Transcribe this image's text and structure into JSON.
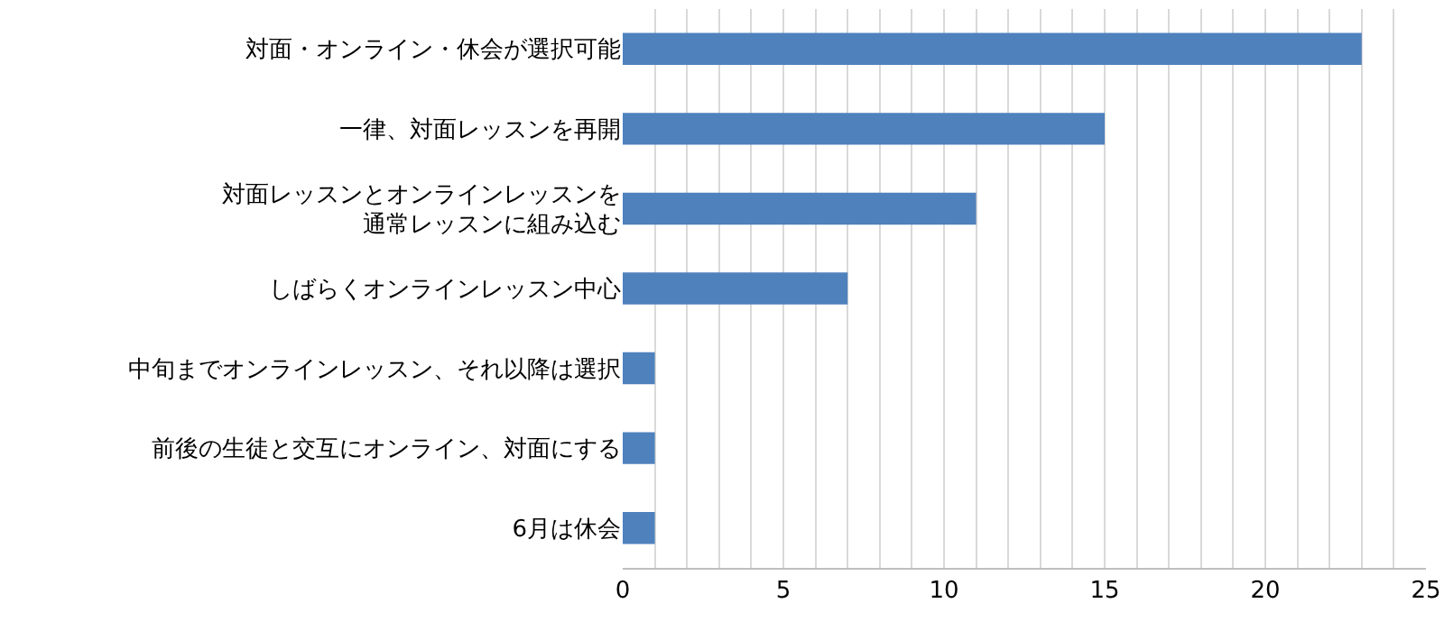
{
  "chart_data": {
    "type": "bar",
    "orientation": "horizontal",
    "categories": [
      "対面・オンライン・休会が選択可能",
      "一律、対面レッスンを再開",
      "対面レッスンとオンラインレッスンを通常レッスンに組み込む",
      "しばらくオンラインレッスン中心",
      "中旬までオンラインレッスン、それ以降は選択",
      "前後の生徒と交互にオンライン、対面にする",
      "6月は休会"
    ],
    "values": [
      23,
      15,
      11,
      7,
      1,
      1,
      1
    ],
    "color": "#4f81bd",
    "xlim": [
      0,
      25
    ],
    "xticks": [
      0,
      {
        "value": 1,
        "label": null
      },
      {
        "value": 2,
        "label": null
      },
      {
        "value": 3,
        "label": null
      },
      {
        "value": 4,
        "label": null
      },
      5,
      {
        "value": 6,
        "label": null
      },
      {
        "value": 7,
        "label": null
      },
      {
        "value": 8,
        "label": null
      },
      {
        "value": 9,
        "label": null
      },
      10,
      {
        "value": 11,
        "label": null
      },
      {
        "value": 12,
        "label": null
      },
      {
        "value": 13,
        "label": null
      },
      {
        "value": 14,
        "label": null
      },
      15,
      {
        "value": 16,
        "label": null
      },
      {
        "value": 17,
        "label": null
      },
      {
        "value": 18,
        "label": null
      },
      {
        "value": 19,
        "label": null
      },
      20,
      {
        "value": 21,
        "label": null
      },
      {
        "value": 22,
        "label": null
      },
      {
        "value": 23,
        "label": null
      },
      {
        "value": 24,
        "label": null
      },
      25
    ],
    "grid": "x",
    "legend": false
  }
}
